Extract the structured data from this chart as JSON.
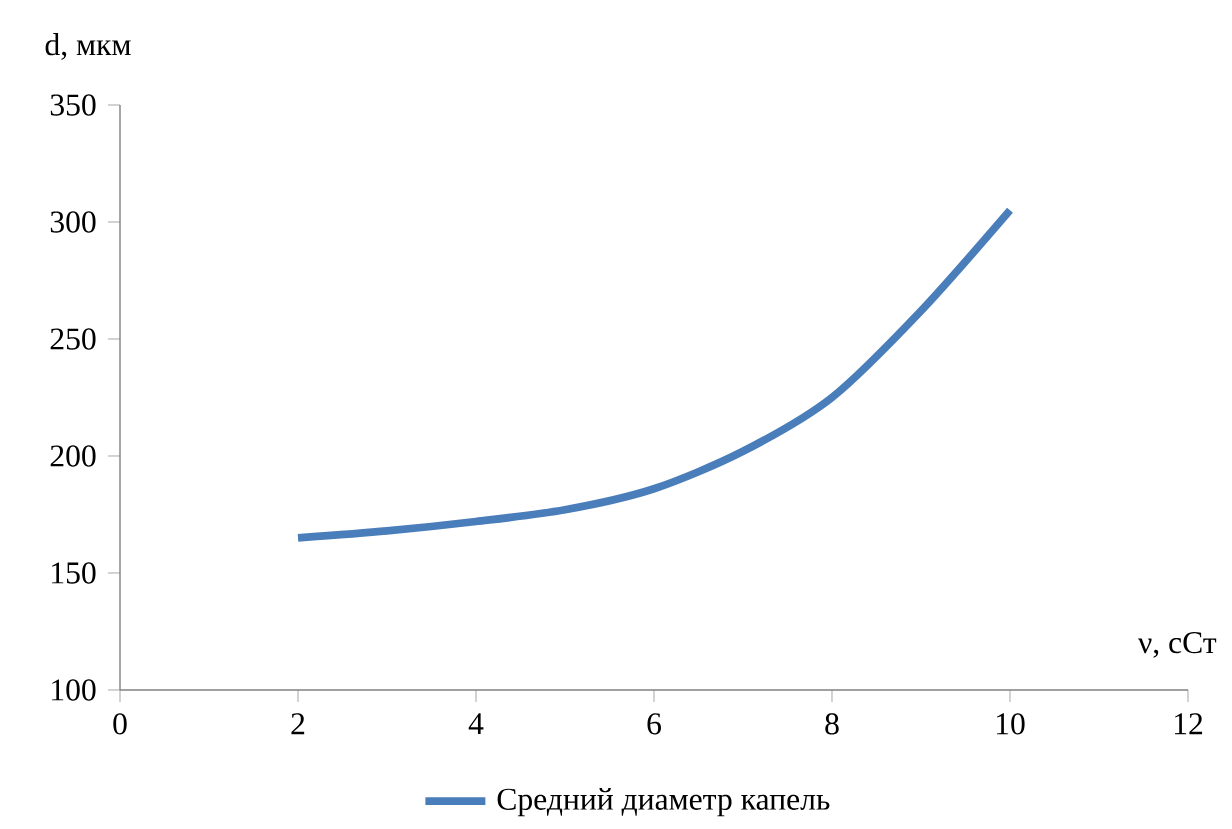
{
  "chart_data": {
    "type": "line",
    "xlabel": "ν, сСт",
    "ylabel": "d, мкм",
    "x": [
      2,
      3,
      4,
      5,
      6,
      7,
      8,
      9,
      10
    ],
    "series": [
      {
        "name": "Средний диаметр капель",
        "color": "#4a7ebb",
        "values": [
          165,
          168,
          172,
          177,
          186,
          202,
          225,
          262,
          305
        ]
      }
    ],
    "xlim": [
      0,
      12
    ],
    "xticks": [
      0,
      2,
      4,
      6,
      8,
      10,
      12
    ],
    "ylim": [
      100,
      350
    ],
    "yticks": [
      100,
      150,
      200,
      250,
      300,
      350
    ],
    "grid": false,
    "legend": "bottom",
    "marker": "none",
    "line_style": "solid"
  }
}
